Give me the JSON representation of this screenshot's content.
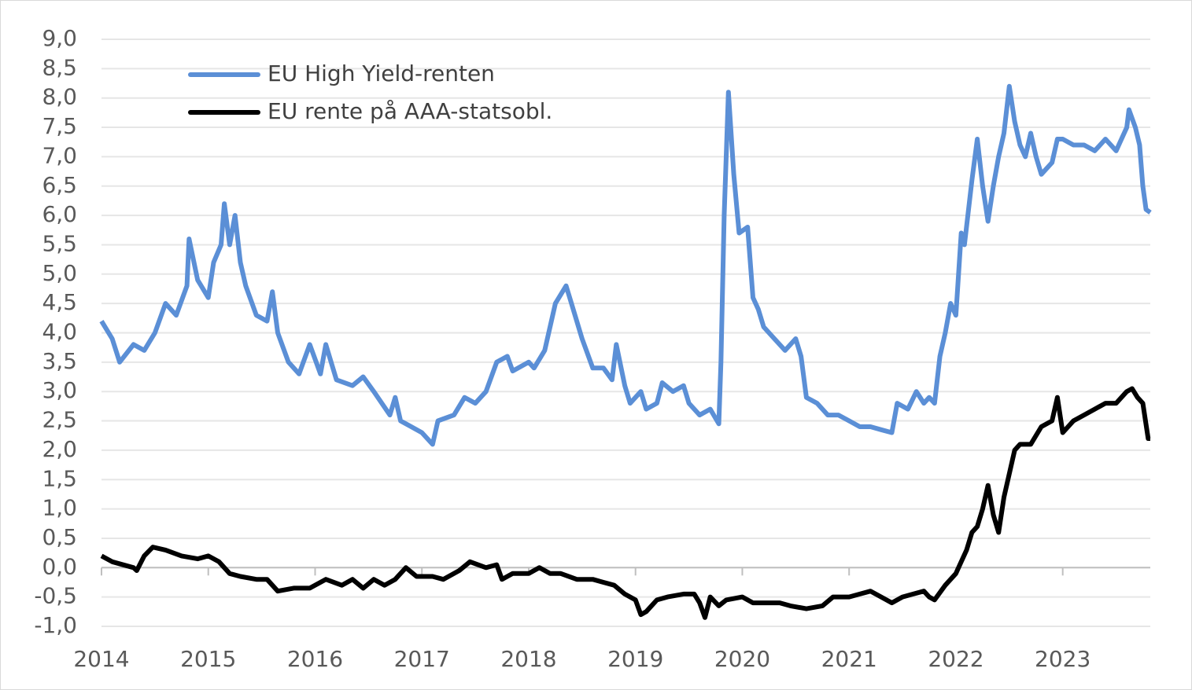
{
  "chart_data": {
    "type": "line",
    "xlim": [
      2014,
      2023.82
    ],
    "xticks": [
      2014,
      2015,
      2016,
      2017,
      2018,
      2019,
      2020,
      2021,
      2022,
      2023
    ],
    "ylim": [
      -1,
      9
    ],
    "yticks": [
      {
        "value": 9,
        "label": "9,0"
      },
      {
        "value": 8.5,
        "label": "8,5"
      },
      {
        "value": 8,
        "label": "8,0"
      },
      {
        "value": 7.5,
        "label": "7,5"
      },
      {
        "value": 7,
        "label": "7,0"
      },
      {
        "value": 6.5,
        "label": "6,5"
      },
      {
        "value": 6,
        "label": "6,0"
      },
      {
        "value": 5.5,
        "label": "5,5"
      },
      {
        "value": 5,
        "label": "5,0"
      },
      {
        "value": 4.5,
        "label": "4,5"
      },
      {
        "value": 4,
        "label": "4,0"
      },
      {
        "value": 3.5,
        "label": "3,5"
      },
      {
        "value": 3,
        "label": "3,0"
      },
      {
        "value": 2.5,
        "label": "2,5"
      },
      {
        "value": 2,
        "label": "2,0"
      },
      {
        "value": 1.5,
        "label": "1,5"
      },
      {
        "value": 1,
        "label": "1,0"
      },
      {
        "value": 0.5,
        "label": "0,5"
      },
      {
        "value": 0,
        "label": "0,0"
      },
      {
        "value": -0.5,
        "label": "-0,5"
      },
      {
        "value": -1,
        "label": "-1,0"
      }
    ],
    "grid": true,
    "legend": "top-left",
    "series": [
      {
        "name": "EU High Yield-renten",
        "color": "#5b8fd6",
        "x": [
          2014.0,
          2014.1,
          2014.17,
          2014.3,
          2014.4,
          2014.5,
          2014.6,
          2014.7,
          2014.8,
          2014.82,
          2014.9,
          2015.0,
          2015.05,
          2015.12,
          2015.15,
          2015.2,
          2015.25,
          2015.3,
          2015.35,
          2015.45,
          2015.55,
          2015.6,
          2015.65,
          2015.75,
          2015.85,
          2015.95,
          2016.05,
          2016.1,
          2016.2,
          2016.35,
          2016.45,
          2016.55,
          2016.7,
          2016.75,
          2016.8,
          2016.9,
          2017.0,
          2017.1,
          2017.15,
          2017.3,
          2017.4,
          2017.5,
          2017.6,
          2017.7,
          2017.8,
          2017.85,
          2018.0,
          2018.05,
          2018.15,
          2018.25,
          2018.35,
          2018.4,
          2018.5,
          2018.6,
          2018.7,
          2018.78,
          2018.82,
          2018.9,
          2018.95,
          2019.05,
          2019.1,
          2019.2,
          2019.25,
          2019.35,
          2019.45,
          2019.5,
          2019.6,
          2019.7,
          2019.78,
          2019.8,
          2019.83,
          2019.87,
          2019.92,
          2019.97,
          2020.05,
          2020.1,
          2020.15,
          2020.2,
          2020.3,
          2020.4,
          2020.5,
          2020.55,
          2020.6,
          2020.7,
          2020.8,
          2020.9,
          2021.0,
          2021.1,
          2021.2,
          2021.3,
          2021.4,
          2021.45,
          2021.55,
          2021.63,
          2021.7,
          2021.75,
          2021.8,
          2021.85,
          2021.9,
          2021.95,
          2022.0,
          2022.05,
          2022.08,
          2022.15,
          2022.2,
          2022.25,
          2022.3,
          2022.35,
          2022.4,
          2022.45,
          2022.5,
          2022.55,
          2022.6,
          2022.65,
          2022.7,
          2022.75,
          2022.8,
          2022.9,
          2022.95,
          2023.0,
          2023.1,
          2023.2,
          2023.3,
          2023.4,
          2023.5,
          2023.6,
          2023.62,
          2023.68,
          2023.72,
          2023.75,
          2023.78,
          2023.82
        ],
        "values": [
          4.2,
          3.9,
          3.5,
          3.8,
          3.7,
          4.0,
          4.5,
          4.3,
          4.8,
          5.6,
          4.9,
          4.6,
          5.2,
          5.5,
          6.2,
          5.5,
          6.0,
          5.2,
          4.8,
          4.3,
          4.2,
          4.7,
          4.0,
          3.5,
          3.3,
          3.8,
          3.3,
          3.8,
          3.2,
          3.1,
          3.25,
          3.0,
          2.6,
          2.9,
          2.5,
          2.4,
          2.3,
          2.1,
          2.5,
          2.6,
          2.9,
          2.8,
          3.0,
          3.5,
          3.6,
          3.35,
          3.5,
          3.4,
          3.7,
          4.5,
          4.8,
          4.5,
          3.9,
          3.4,
          3.4,
          3.2,
          3.8,
          3.1,
          2.8,
          3.0,
          2.7,
          2.8,
          3.15,
          3.0,
          3.1,
          2.8,
          2.6,
          2.7,
          2.45,
          3.5,
          6.0,
          8.1,
          6.7,
          5.7,
          5.8,
          4.6,
          4.4,
          4.1,
          3.9,
          3.7,
          3.9,
          3.6,
          2.9,
          2.8,
          2.6,
          2.6,
          2.5,
          2.4,
          2.4,
          2.35,
          2.3,
          2.8,
          2.7,
          3.0,
          2.8,
          2.9,
          2.8,
          3.6,
          4.0,
          4.5,
          4.3,
          5.7,
          5.5,
          6.6,
          7.3,
          6.5,
          5.9,
          6.5,
          7.0,
          7.4,
          8.2,
          7.6,
          7.2,
          7.0,
          7.4,
          7.0,
          6.7,
          6.9,
          7.3,
          7.3,
          7.2,
          7.2,
          7.1,
          7.3,
          7.1,
          7.5,
          7.8,
          7.5,
          7.2,
          6.5,
          6.1,
          6.05
        ]
      },
      {
        "name": "EU rente på AAA-statsobl.",
        "color": "#000000",
        "x": [
          2014.0,
          2014.1,
          2014.3,
          2014.33,
          2014.4,
          2014.48,
          2014.6,
          2014.75,
          2014.9,
          2015.0,
          2015.1,
          2015.2,
          2015.3,
          2015.45,
          2015.55,
          2015.65,
          2015.8,
          2015.95,
          2016.1,
          2016.25,
          2016.35,
          2016.45,
          2016.55,
          2016.65,
          2016.75,
          2016.85,
          2016.95,
          2017.1,
          2017.2,
          2017.35,
          2017.45,
          2017.6,
          2017.7,
          2017.75,
          2017.85,
          2018.0,
          2018.1,
          2018.2,
          2018.3,
          2018.45,
          2018.6,
          2018.7,
          2018.8,
          2018.9,
          2019.0,
          2019.05,
          2019.1,
          2019.2,
          2019.3,
          2019.45,
          2019.55,
          2019.6,
          2019.65,
          2019.7,
          2019.78,
          2019.85,
          2020.0,
          2020.1,
          2020.25,
          2020.35,
          2020.45,
          2020.6,
          2020.75,
          2020.85,
          2021.0,
          2021.1,
          2021.2,
          2021.3,
          2021.4,
          2021.5,
          2021.6,
          2021.7,
          2021.75,
          2021.8,
          2021.9,
          2021.95,
          2022.0,
          2022.05,
          2022.1,
          2022.15,
          2022.2,
          2022.25,
          2022.3,
          2022.35,
          2022.4,
          2022.45,
          2022.5,
          2022.55,
          2022.6,
          2022.7,
          2022.8,
          2022.9,
          2022.95,
          2023.0,
          2023.1,
          2023.2,
          2023.3,
          2023.4,
          2023.5,
          2023.6,
          2023.65,
          2023.7,
          2023.75,
          2023.8,
          2023.82
        ],
        "values": [
          0.2,
          0.1,
          0.0,
          -0.05,
          0.2,
          0.35,
          0.3,
          0.2,
          0.15,
          0.2,
          0.1,
          -0.1,
          -0.15,
          -0.2,
          -0.2,
          -0.4,
          -0.35,
          -0.35,
          -0.2,
          -0.3,
          -0.2,
          -0.35,
          -0.2,
          -0.3,
          -0.2,
          0.0,
          -0.15,
          -0.15,
          -0.2,
          -0.05,
          0.1,
          0.0,
          0.05,
          -0.2,
          -0.1,
          -0.1,
          0.0,
          -0.1,
          -0.1,
          -0.2,
          -0.2,
          -0.25,
          -0.3,
          -0.45,
          -0.55,
          -0.8,
          -0.75,
          -0.55,
          -0.5,
          -0.45,
          -0.45,
          -0.6,
          -0.85,
          -0.5,
          -0.65,
          -0.55,
          -0.5,
          -0.6,
          -0.6,
          -0.6,
          -0.65,
          -0.7,
          -0.65,
          -0.5,
          -0.5,
          -0.45,
          -0.4,
          -0.5,
          -0.6,
          -0.5,
          -0.45,
          -0.4,
          -0.5,
          -0.55,
          -0.3,
          -0.2,
          -0.1,
          0.1,
          0.3,
          0.6,
          0.7,
          1.0,
          1.4,
          0.9,
          0.6,
          1.2,
          1.6,
          2.0,
          2.1,
          2.1,
          2.4,
          2.5,
          2.9,
          2.3,
          2.5,
          2.6,
          2.7,
          2.8,
          2.8,
          3.0,
          3.05,
          2.9,
          2.8,
          2.2,
          2.2
        ]
      }
    ]
  }
}
